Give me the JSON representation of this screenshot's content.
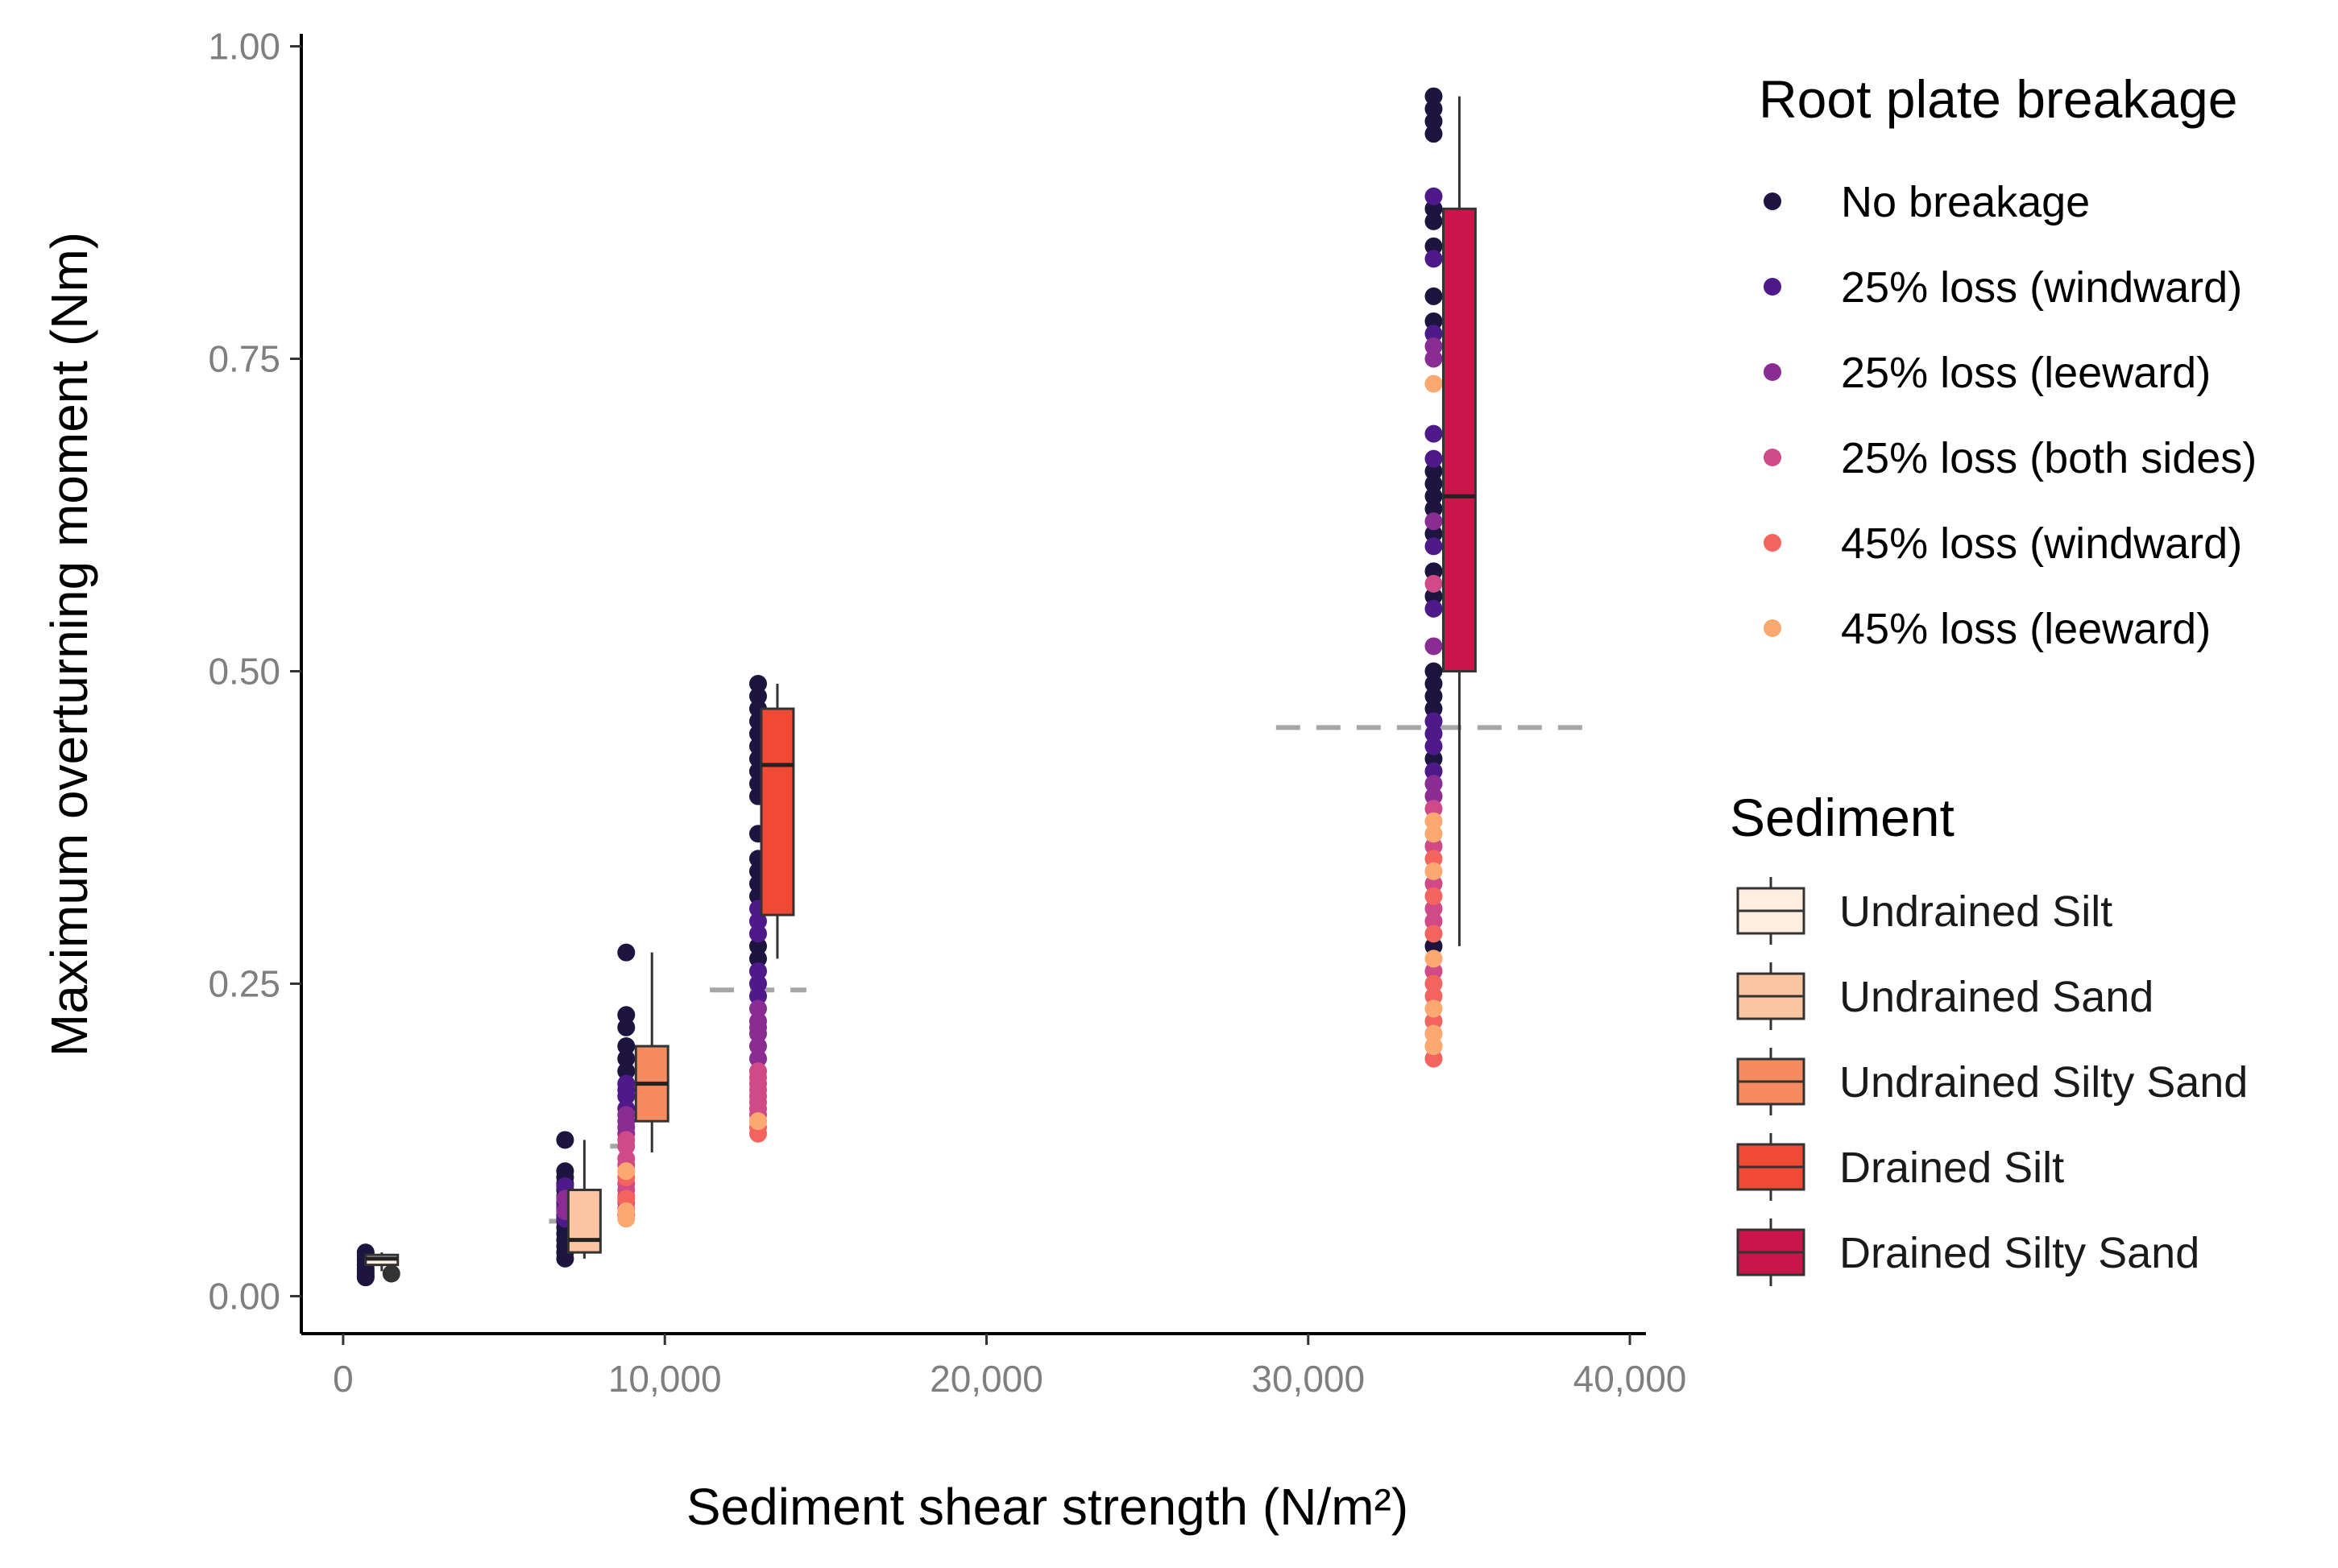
{
  "chart_data": {
    "type": "box",
    "xlabel": "Sediment shear strength (N/m²)",
    "ylabel": "Maximum overturning moment (Nm)",
    "xlim": [
      -1300,
      40500
    ],
    "ylim": [
      -0.03,
      1.01
    ],
    "xticks": [
      0,
      10000,
      20000,
      30000,
      40000
    ],
    "xtick_labels": [
      "0",
      "10,000",
      "20,000",
      "30,000",
      "40,000"
    ],
    "yticks": [
      0,
      0.25,
      0.5,
      0.75,
      1.0
    ],
    "ytick_labels": [
      "0.00",
      "0.25",
      "0.50",
      "0.75",
      "1.00"
    ],
    "grid": false,
    "breakage_legend": {
      "title": "Root plate breakage",
      "entries": [
        {
          "name": "No breakage",
          "color": "#1d1540"
        },
        {
          "name": "25% loss (windward)",
          "color": "#4e1a8a"
        },
        {
          "name": "25% loss (leeward)",
          "color": "#8a2d92"
        },
        {
          "name": "25% loss (both sides)",
          "color": "#cf4a86"
        },
        {
          "name": "45% loss (windward)",
          "color": "#f4645f"
        },
        {
          "name": "45% loss (leeward)",
          "color": "#fca871"
        }
      ]
    },
    "sediment_legend": {
      "title": "Sediment",
      "entries": [
        {
          "name": "Undrained Silt",
          "color": "#fdeee0"
        },
        {
          "name": "Undrained Sand",
          "color": "#fcc5a2"
        },
        {
          "name": "Undrained Silty Sand",
          "color": "#f58b5e"
        },
        {
          "name": "Drained Silt",
          "color": "#f04a35"
        },
        {
          "name": "Drained Silty Sand",
          "color": "#c8154a"
        }
      ]
    },
    "boxes": [
      {
        "sediment": "Undrained Silt",
        "x": 1200,
        "halfwidth": 500,
        "q1": 0.025,
        "median": 0.03,
        "q3": 0.033,
        "whisker_low": 0.02,
        "whisker_high": 0.035
      },
      {
        "sediment": "Undrained Sand",
        "x": 7500,
        "halfwidth": 500,
        "q1": 0.035,
        "median": 0.045,
        "q3": 0.085,
        "whisker_low": 0.03,
        "whisker_high": 0.125
      },
      {
        "sediment": "Undrained Silty Sand",
        "x": 9600,
        "halfwidth": 500,
        "q1": 0.14,
        "median": 0.17,
        "q3": 0.2,
        "whisker_low": 0.115,
        "whisker_high": 0.275
      },
      {
        "sediment": "Drained Silt",
        "x": 13500,
        "halfwidth": 500,
        "q1": 0.305,
        "median": 0.425,
        "q3": 0.47,
        "whisker_low": 0.27,
        "whisker_high": 0.49
      },
      {
        "sediment": "Drained Silty Sand",
        "x": 34700,
        "halfwidth": 500,
        "q1": 0.5,
        "median": 0.64,
        "q3": 0.87,
        "whisker_low": 0.28,
        "whisker_high": 0.96
      }
    ],
    "outliers": [
      {
        "x": 1500,
        "y": 0.018
      }
    ],
    "reference_lines": [
      {
        "x_from": 6400,
        "x_to": 7400,
        "y": 0.06
      },
      {
        "x_from": 8300,
        "x_to": 9200,
        "y": 0.12
      },
      {
        "x_from": 11400,
        "x_to": 14400,
        "y": 0.245
      },
      {
        "x_from": 29000,
        "x_to": 38800,
        "y": 0.455
      }
    ],
    "points": [
      {
        "x": 700,
        "group": "No breakage",
        "y": [
          0.035,
          0.03,
          0.028,
          0.025,
          0.022,
          0.02,
          0.018,
          0.016,
          0.033,
          0.015
        ]
      },
      {
        "x": 6900,
        "group": "No breakage",
        "y": [
          0.125,
          0.1,
          0.095,
          0.09,
          0.085,
          0.08,
          0.075,
          0.07,
          0.065,
          0.06,
          0.055,
          0.05,
          0.045,
          0.04,
          0.035,
          0.03
        ]
      },
      {
        "x": 6900,
        "group": "25% loss (windward)",
        "y": [
          0.088,
          0.072,
          0.062
        ]
      },
      {
        "x": 6900,
        "group": "25% loss (leeward)",
        "y": [
          0.078,
          0.068
        ]
      },
      {
        "x": 8800,
        "group": "No breakage",
        "y": [
          0.275,
          0.225,
          0.215,
          0.2,
          0.19,
          0.18
        ]
      },
      {
        "x": 8800,
        "group": "25% loss (windward)",
        "y": [
          0.17,
          0.165,
          0.16,
          0.15
        ]
      },
      {
        "x": 8800,
        "group": "25% loss (leeward)",
        "y": [
          0.145,
          0.14,
          0.135,
          0.13
        ]
      },
      {
        "x": 8800,
        "group": "25% loss (both sides)",
        "y": [
          0.125,
          0.12,
          0.11,
          0.105,
          0.1,
          0.09,
          0.085,
          0.08,
          0.075,
          0.07,
          0.065
        ]
      },
      {
        "x": 8800,
        "group": "45% loss (windward)",
        "y": [
          0.095,
          0.078
        ]
      },
      {
        "x": 8800,
        "group": "45% loss (leeward)",
        "y": [
          0.1,
          0.068,
          0.062
        ]
      },
      {
        "x": 12900,
        "group": "No breakage",
        "y": [
          0.49,
          0.48,
          0.47,
          0.46,
          0.45,
          0.44,
          0.43,
          0.42,
          0.41,
          0.4,
          0.37,
          0.35,
          0.34,
          0.33,
          0.32,
          0.28,
          0.27
        ]
      },
      {
        "x": 12900,
        "group": "25% loss (windward)",
        "y": [
          0.31,
          0.3,
          0.29,
          0.26,
          0.25,
          0.24
        ]
      },
      {
        "x": 12900,
        "group": "25% loss (leeward)",
        "y": [
          0.23,
          0.22,
          0.215,
          0.21,
          0.2,
          0.19
        ]
      },
      {
        "x": 12900,
        "group": "25% loss (both sides)",
        "y": [
          0.18,
          0.175,
          0.17,
          0.165,
          0.16,
          0.155,
          0.15,
          0.145
        ]
      },
      {
        "x": 12900,
        "group": "45% loss (windward)",
        "y": [
          0.14,
          0.135,
          0.13
        ]
      },
      {
        "x": 12900,
        "group": "45% loss (leeward)",
        "y": [
          0.14
        ]
      },
      {
        "x": 33900,
        "group": "No breakage",
        "y": [
          0.96,
          0.95,
          0.94,
          0.93,
          0.87,
          0.86,
          0.84,
          0.8,
          0.78,
          0.66,
          0.65,
          0.64,
          0.63,
          0.61,
          0.58,
          0.56,
          0.5,
          0.49,
          0.48,
          0.47,
          0.43,
          0.28
        ]
      },
      {
        "x": 33900,
        "group": "25% loss (windward)",
        "y": [
          0.88,
          0.83,
          0.77,
          0.69,
          0.67,
          0.6,
          0.55,
          0.46,
          0.45,
          0.44,
          0.42
        ]
      },
      {
        "x": 33900,
        "group": "25% loss (leeward)",
        "y": [
          0.76,
          0.75,
          0.62,
          0.52,
          0.41,
          0.4
        ]
      },
      {
        "x": 33900,
        "group": "25% loss (both sides)",
        "y": [
          0.57,
          0.39,
          0.36,
          0.33,
          0.31,
          0.3,
          0.26
        ]
      },
      {
        "x": 33900,
        "group": "45% loss (windward)",
        "y": [
          0.35,
          0.32,
          0.29,
          0.25,
          0.24,
          0.22,
          0.21,
          0.2,
          0.19
        ]
      },
      {
        "x": 33900,
        "group": "45% loss (leeward)",
        "y": [
          0.73,
          0.38,
          0.37,
          0.34,
          0.27,
          0.23,
          0.21,
          0.2
        ]
      }
    ]
  }
}
